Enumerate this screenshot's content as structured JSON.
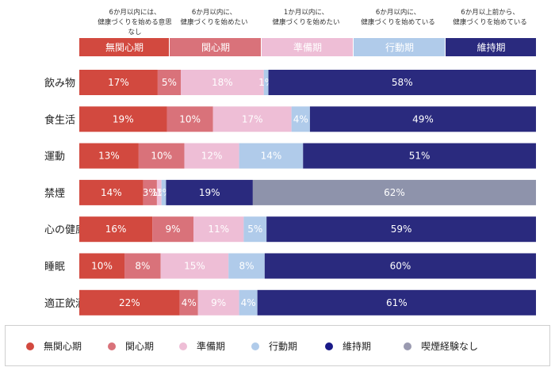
{
  "chart_data": {
    "type": "bar",
    "orientation": "horizontal",
    "stacked": true,
    "stage_headers": [
      {
        "lines": [
          "6か月以内には、",
          "健康づくりを始める意思",
          "なし"
        ]
      },
      {
        "lines": [
          "6か月以内に、",
          "健康づくりを始めたい"
        ]
      },
      {
        "lines": [
          "1か月以内に、",
          "健康づくりを始めたい"
        ]
      },
      {
        "lines": [
          "6か月以内に、",
          "健康づくりを始めている"
        ]
      },
      {
        "lines": [
          "6か月以上前から、",
          "健康づくりを始めている"
        ]
      }
    ],
    "header_labels": [
      "無関心期",
      "関心期",
      "準備期",
      "行動期",
      "維持期"
    ],
    "categories": [
      "飲み物",
      "食生活",
      "運動",
      "禁煙",
      "心の健康",
      "睡眠",
      "適正飲酒"
    ],
    "series": [
      {
        "name": "無関心期",
        "color": "#d2493f",
        "values": [
          17,
          19,
          13,
          14,
          16,
          10,
          22
        ]
      },
      {
        "name": "関心期",
        "color": "#d9727a",
        "values": [
          5,
          10,
          10,
          3,
          9,
          8,
          4
        ]
      },
      {
        "name": "準備期",
        "color": "#eebed6",
        "values": [
          18,
          17,
          12,
          1,
          11,
          15,
          9
        ]
      },
      {
        "name": "行動期",
        "color": "#b0cbea",
        "values": [
          1,
          4,
          14,
          1,
          5,
          8,
          4
        ]
      },
      {
        "name": "維持期",
        "color": "#2a2a7e",
        "values": [
          58,
          49,
          51,
          19,
          59,
          60,
          61
        ]
      },
      {
        "name": "喫煙経験なし",
        "color": "#8e93ab",
        "values": [
          null,
          null,
          null,
          62,
          null,
          null,
          null
        ]
      }
    ],
    "value_labels": [
      [
        "17%",
        "5%",
        "18%",
        "1%",
        "58%",
        ""
      ],
      [
        "19%",
        "10%",
        "17%",
        "4%",
        "49%",
        ""
      ],
      [
        "13%",
        "10%",
        "12%",
        "14%",
        "51%",
        ""
      ],
      [
        "14%",
        "3%",
        "1%",
        "1%",
        "19%",
        "62%"
      ],
      [
        "16%",
        "9%",
        "11%",
        "5%",
        "59%",
        ""
      ],
      [
        "10%",
        "8%",
        "15%",
        "8%",
        "60%",
        ""
      ],
      [
        "22%",
        "4%",
        "9%",
        "4%",
        "61%",
        ""
      ]
    ],
    "legend": {
      "position": "bottom",
      "items": [
        {
          "label": "無関心期",
          "color": "#d2493f"
        },
        {
          "label": "関心期",
          "color": "#d9727a"
        },
        {
          "label": "準備期",
          "color": "#eebed6"
        },
        {
          "label": "行動期",
          "color": "#b0cbea"
        },
        {
          "label": "維持期",
          "color": "#1a1a88"
        },
        {
          "label": "喫煙経験なし",
          "color": "#9a9ab0"
        }
      ]
    }
  }
}
